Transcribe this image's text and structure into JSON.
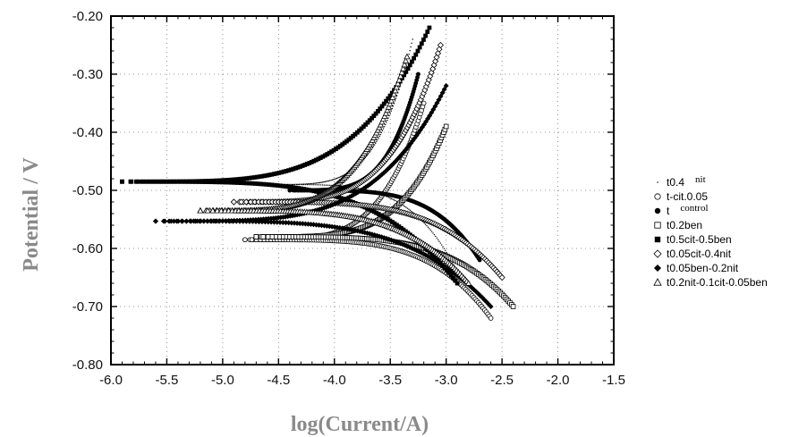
{
  "chart_data": {
    "type": "scatter",
    "title": "",
    "xlabel": "log(Current/A)",
    "ylabel": "Potential / V",
    "xlim": [
      -6.0,
      -1.5
    ],
    "ylim": [
      -0.8,
      -0.2
    ],
    "xticks": [
      "-6.0",
      "-5.5",
      "-5.0",
      "-4.5",
      "-4.0",
      "-3.5",
      "-3.0",
      "-2.5",
      "-2.0",
      "-1.5"
    ],
    "yticks": [
      "-0.20",
      "-0.30",
      "-0.40",
      "-0.50",
      "-0.60",
      "-0.70",
      "-0.80"
    ],
    "grid": "dotted",
    "legend_position": "right",
    "series": [
      {
        "name": "t0.4",
        "name_extra": "nit",
        "marker": "dot",
        "corr_point": [
          -4.6,
          -0.49
        ],
        "anodic_end": [
          -3.3,
          -0.24
        ],
        "cathodic_end": [
          -2.9,
          -0.64
        ]
      },
      {
        "name": "t-cit.0.05",
        "marker": "circle-open",
        "corr_point": [
          -4.8,
          -0.585
        ],
        "anodic_end": [
          -3.2,
          -0.35
        ],
        "cathodic_end": [
          -2.6,
          -0.72
        ]
      },
      {
        "name": "t",
        "name_extra": "control",
        "marker": "circle-filled",
        "corr_point": [
          -4.4,
          -0.5
        ],
        "anodic_end": [
          -3.25,
          -0.3
        ],
        "cathodic_end": [
          -2.7,
          -0.62
        ]
      },
      {
        "name": "t0.2ben",
        "marker": "square-open",
        "corr_point": [
          -4.7,
          -0.58
        ],
        "anodic_end": [
          -3.0,
          -0.39
        ],
        "cathodic_end": [
          -2.4,
          -0.7
        ]
      },
      {
        "name": "t0.5cit-0.5ben",
        "marker": "square-filled",
        "corr_point": [
          -5.9,
          -0.485
        ],
        "anodic_end": [
          -3.15,
          -0.22
        ],
        "cathodic_end": [
          -2.9,
          -0.66
        ]
      },
      {
        "name": "t0.05cit-0.4nit",
        "marker": "diamond-open",
        "corr_point": [
          -4.9,
          -0.52
        ],
        "anodic_end": [
          -3.05,
          -0.25
        ],
        "cathodic_end": [
          -2.5,
          -0.65
        ]
      },
      {
        "name": "t0.05ben-0.2nit",
        "marker": "diamond-filled",
        "corr_point": [
          -5.6,
          -0.553
        ],
        "anodic_end": [
          -3.0,
          -0.32
        ],
        "cathodic_end": [
          -2.6,
          -0.7
        ]
      },
      {
        "name": "t0.2nit-0.1cit-0.05ben",
        "marker": "triangle-open",
        "corr_point": [
          -5.2,
          -0.535
        ],
        "anodic_end": [
          -3.35,
          -0.27
        ],
        "cathodic_end": [
          -2.8,
          -0.66
        ]
      }
    ]
  }
}
